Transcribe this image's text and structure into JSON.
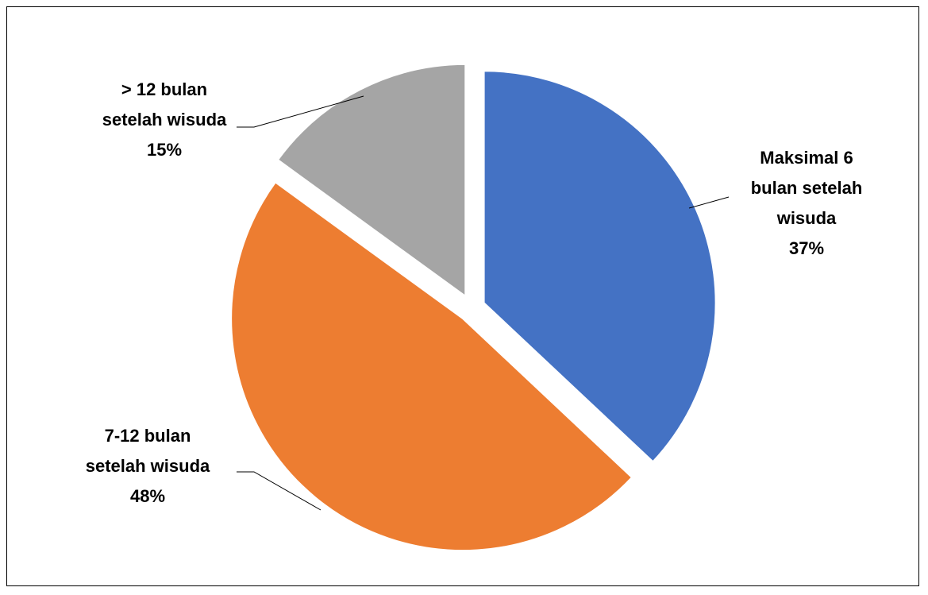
{
  "chart_data": {
    "type": "pie",
    "title": "",
    "slices": [
      {
        "label_lines": [
          "Maksimal 6",
          "bulan setelah",
          "wisuda"
        ],
        "percent_label": "37%",
        "value": 37,
        "color": "#4472C4"
      },
      {
        "label_lines": [
          "7-12 bulan",
          "setelah wisuda"
        ],
        "percent_label": "48%",
        "value": 48,
        "color": "#ED7D31"
      },
      {
        "label_lines": [
          "> 12 bulan",
          "setelah wisuda"
        ],
        "percent_label": "15%",
        "value": 15,
        "color": "#A5A5A5"
      }
    ],
    "start_angle_deg": 0,
    "direction": "clockwise",
    "exploded": true,
    "legend": "none",
    "label_style": "outside-with-leader-lines"
  }
}
